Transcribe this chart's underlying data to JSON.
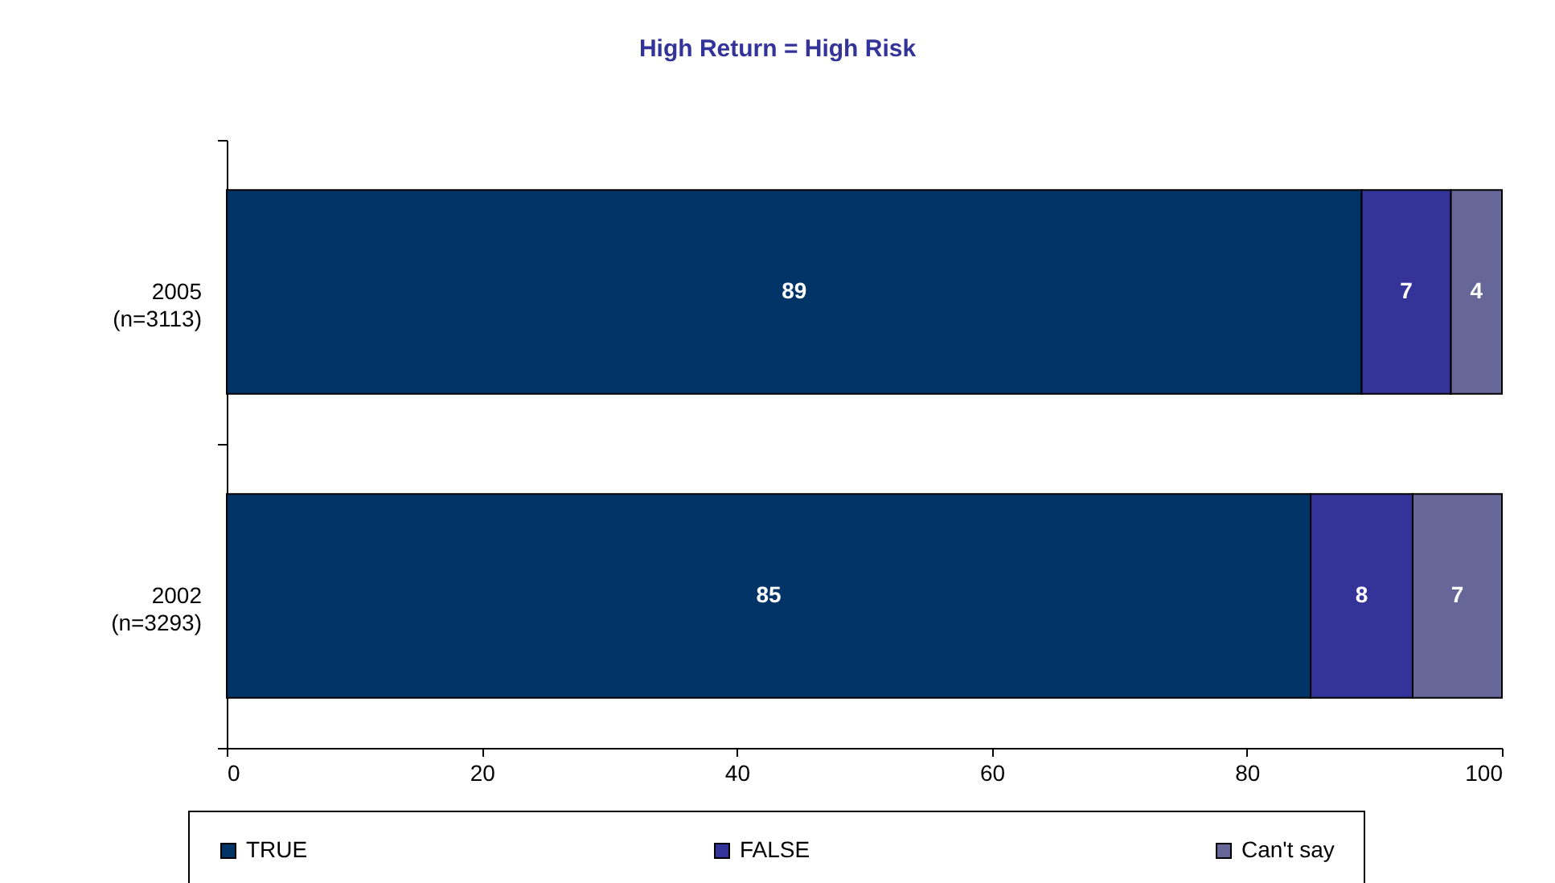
{
  "chart_data": {
    "type": "bar",
    "orientation": "horizontal",
    "stacked": true,
    "title": "High Return = High Risk",
    "categories": [
      "2005\n(n=3113)",
      "2002\n(n=3293)"
    ],
    "series": [
      {
        "name": "TRUE",
        "color": "#003366",
        "values": [
          89,
          85
        ]
      },
      {
        "name": "FALSE",
        "color": "#333399",
        "values": [
          7,
          8
        ]
      },
      {
        "name": "Can't say",
        "color": "#666699",
        "values": [
          4,
          7
        ]
      }
    ],
    "xlim": [
      0,
      100
    ],
    "xticks": [
      0,
      20,
      40,
      60,
      80,
      100
    ],
    "data_labels": true,
    "legend": "bottom",
    "grid": false
  }
}
